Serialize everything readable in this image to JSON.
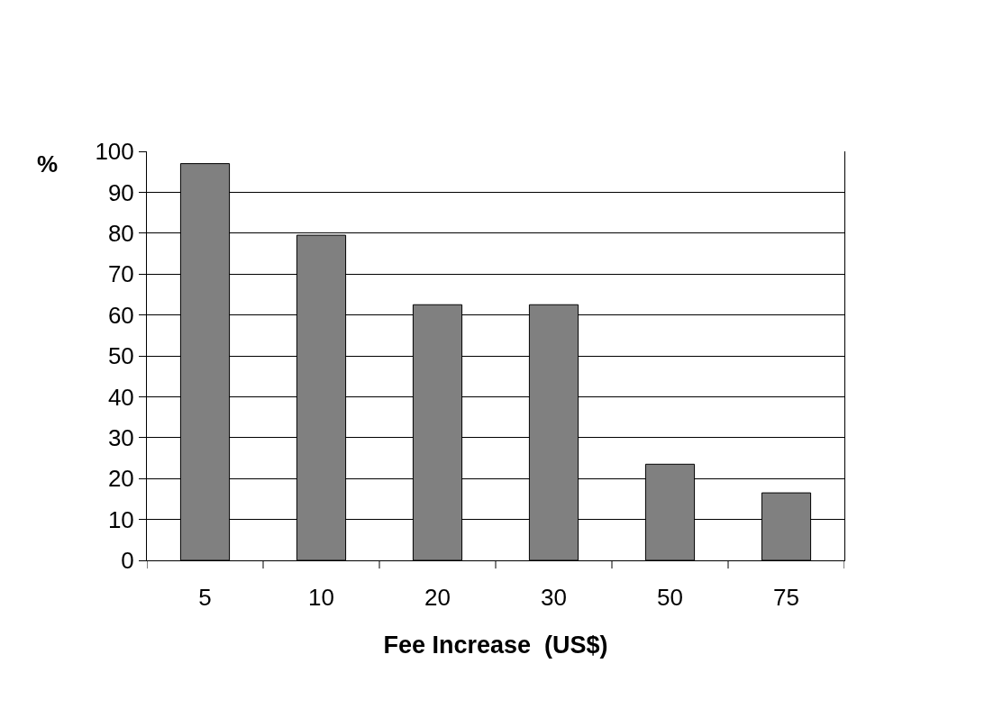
{
  "chart_data": {
    "type": "bar",
    "xlabel": "Fee Increase  (US$)",
    "ylabel": "%",
    "categories": [
      "5",
      "10",
      "20",
      "30",
      "50",
      "75"
    ],
    "values": [
      97,
      79.5,
      62.5,
      62.5,
      23.5,
      16.5
    ],
    "color": "#808080",
    "ylim": [
      0,
      100
    ],
    "yticks": [
      0,
      10,
      20,
      30,
      40,
      50,
      60,
      70,
      80,
      90,
      100
    ],
    "grid": "y"
  }
}
